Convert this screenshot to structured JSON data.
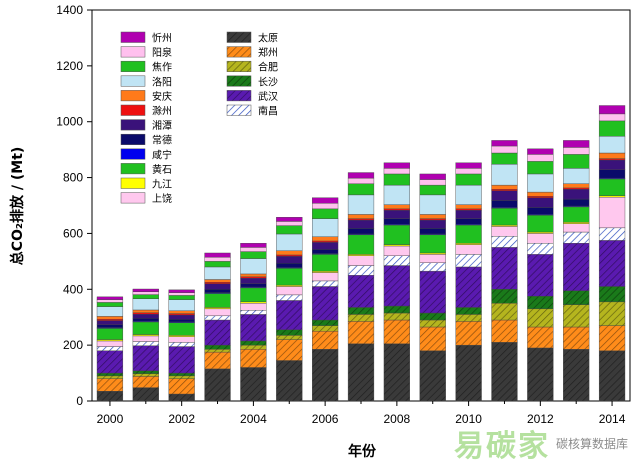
{
  "chart_data": {
    "type": "bar",
    "stacked": true,
    "title": "",
    "xlabel": "年份",
    "ylabel": "总CO₂排放 / (Mt)",
    "ylim": [
      0,
      1400
    ],
    "yticks": [
      0,
      200,
      400,
      600,
      800,
      1000,
      1200,
      1400
    ],
    "xticks": [
      "2000",
      "2002",
      "2004",
      "2006",
      "2008",
      "2010",
      "2012",
      "2014"
    ],
    "grid": false,
    "legend_placement": "top-left, two columns",
    "categories": [
      "2000",
      "2001",
      "2002",
      "2003",
      "2004",
      "2005",
      "2006",
      "2007",
      "2008",
      "2009",
      "2010",
      "2011",
      "2012",
      "2013",
      "2014"
    ],
    "series": [
      {
        "name": "太原",
        "color": "#3a3a3a",
        "pattern": "hatch",
        "values": [
          35,
          48,
          25,
          115,
          120,
          145,
          185,
          205,
          205,
          180,
          200,
          210,
          190,
          185,
          180
        ]
      },
      {
        "name": "郑州",
        "color": "#ff8c1a",
        "pattern": "hatch",
        "values": [
          45,
          40,
          55,
          60,
          65,
          75,
          65,
          80,
          85,
          85,
          85,
          80,
          75,
          80,
          90
        ]
      },
      {
        "name": "合肥",
        "color": "#b5b51e",
        "pattern": "hatch",
        "values": [
          10,
          10,
          10,
          10,
          15,
          15,
          20,
          25,
          25,
          25,
          25,
          60,
          65,
          80,
          85
        ]
      },
      {
        "name": "长沙",
        "color": "#1a7a1a",
        "pattern": "hatch",
        "values": [
          10,
          10,
          10,
          15,
          15,
          20,
          20,
          25,
          25,
          25,
          25,
          50,
          45,
          50,
          55
        ]
      },
      {
        "name": "武汉",
        "color": "#5a1ab0",
        "pattern": "hatch",
        "values": [
          80,
          90,
          95,
          90,
          95,
          105,
          120,
          115,
          145,
          150,
          145,
          150,
          150,
          170,
          165
        ]
      },
      {
        "name": "南昌",
        "color": "#ffffff",
        "pattern": "hatch",
        "values": [
          15,
          15,
          15,
          15,
          15,
          20,
          20,
          35,
          35,
          30,
          45,
          40,
          40,
          40,
          45
        ]
      },
      {
        "name": "上饶",
        "color": "#ffc8ee",
        "pattern": "solid",
        "values": [
          20,
          20,
          20,
          25,
          25,
          30,
          30,
          35,
          35,
          30,
          35,
          35,
          35,
          30,
          110
        ]
      },
      {
        "name": "九江",
        "color": "#ffff00",
        "pattern": "solid",
        "values": [
          5,
          5,
          5,
          5,
          5,
          5,
          5,
          5,
          5,
          5,
          5,
          5,
          5,
          5,
          5
        ]
      },
      {
        "name": "黄石",
        "color": "#20c020",
        "pattern": "solid",
        "values": [
          40,
          45,
          45,
          50,
          50,
          60,
          60,
          70,
          70,
          65,
          65,
          60,
          60,
          55,
          60
        ]
      },
      {
        "name": "咸宁",
        "color": "#0000ee",
        "pattern": "solid",
        "values": [
          3,
          3,
          3,
          3,
          3,
          3,
          3,
          3,
          3,
          3,
          3,
          3,
          3,
          3,
          3
        ]
      },
      {
        "name": "常德",
        "color": "#0a0a6a",
        "pattern": "solid",
        "values": [
          10,
          10,
          10,
          12,
          12,
          15,
          15,
          20,
          20,
          20,
          20,
          25,
          25,
          25,
          30
        ]
      },
      {
        "name": "湘潭",
        "color": "#3a127a",
        "pattern": "solid",
        "values": [
          15,
          15,
          15,
          20,
          20,
          25,
          25,
          30,
          30,
          30,
          30,
          35,
          35,
          35,
          35
        ]
      },
      {
        "name": "滁州",
        "color": "#ee1010",
        "pattern": "solid",
        "values": [
          5,
          5,
          5,
          5,
          5,
          5,
          5,
          5,
          5,
          5,
          5,
          5,
          5,
          5,
          5
        ]
      },
      {
        "name": "安庆",
        "color": "#ff7a1a",
        "pattern": "solid",
        "values": [
          10,
          10,
          10,
          10,
          10,
          15,
          15,
          15,
          15,
          15,
          15,
          15,
          15,
          15,
          20
        ]
      },
      {
        "name": "洛阳",
        "color": "#c0e4f4",
        "pattern": "solid",
        "values": [
          35,
          40,
          40,
          45,
          55,
          60,
          65,
          70,
          70,
          70,
          70,
          75,
          65,
          55,
          60
        ]
      },
      {
        "name": "焦作",
        "color": "#20c020",
        "pattern": "solid",
        "values": [
          15,
          15,
          15,
          20,
          25,
          30,
          35,
          40,
          40,
          35,
          40,
          40,
          45,
          50,
          55
        ]
      },
      {
        "name": "阳泉",
        "color": "#ffc0ee",
        "pattern": "solid",
        "values": [
          10,
          10,
          10,
          15,
          15,
          15,
          20,
          20,
          20,
          20,
          20,
          25,
          25,
          25,
          25
        ]
      },
      {
        "name": "忻州",
        "color": "#b000b0",
        "pattern": "solid",
        "values": [
          10,
          10,
          10,
          15,
          15,
          15,
          20,
          20,
          20,
          20,
          20,
          20,
          20,
          25,
          30
        ]
      }
    ],
    "legend_col1": [
      "忻州",
      "阳泉",
      "焦作",
      "洛阳",
      "安庆",
      "滁州",
      "湘潭",
      "常德",
      "咸宁",
      "黄石",
      "九江",
      "上饶"
    ],
    "legend_col2": [
      "太原",
      "郑州",
      "合肥",
      "长沙",
      "武汉",
      "南昌"
    ]
  },
  "watermark": {
    "logo": "易碳家",
    "text": "碳核算数据库"
  }
}
